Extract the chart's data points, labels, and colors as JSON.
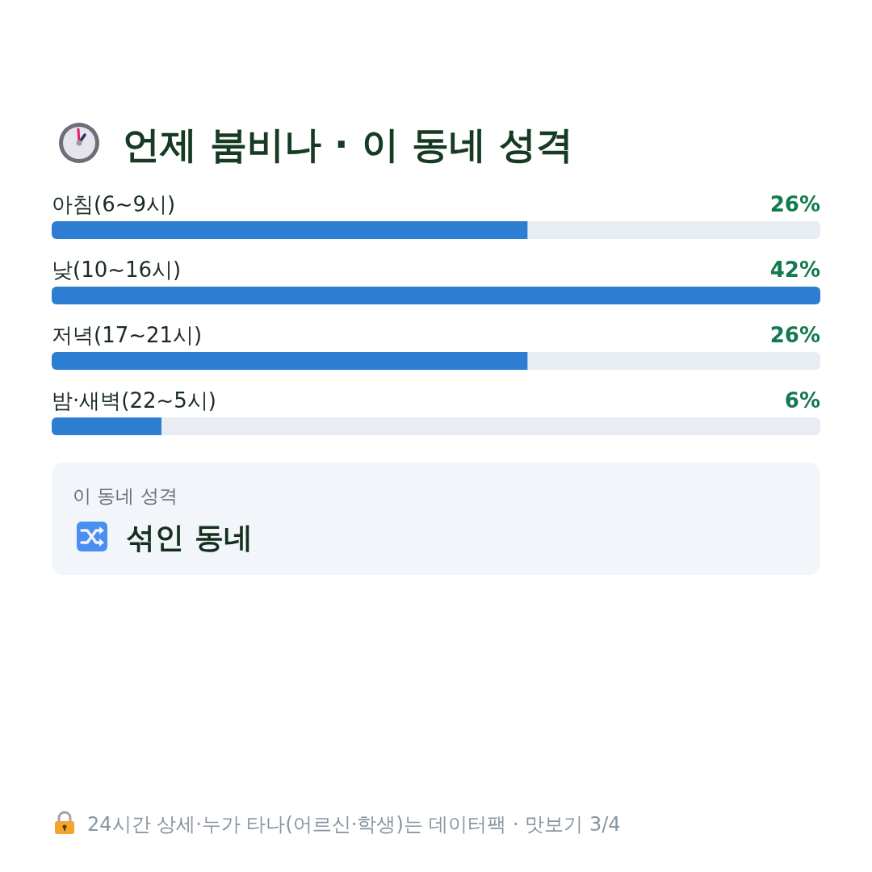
{
  "chart_data": {
    "type": "bar",
    "orientation": "horizontal",
    "title": "언제 붐비나 · 이 동네 성격",
    "categories": [
      "아침(6~9시)",
      "낮(10~16시)",
      "저녁(17~21시)",
      "밤·새벽(22~5시)"
    ],
    "values": [
      26,
      42,
      26,
      6
    ],
    "value_labels": [
      "26%",
      "42%",
      "26%",
      "6%"
    ],
    "color": "#2d7dd2",
    "annotations": [
      "이 동네 성격",
      "섞인 동네",
      "24시간 상세·누가 타나(어르신·학생)는 데이터팩 · 맛보기 3/4"
    ]
  }
}
